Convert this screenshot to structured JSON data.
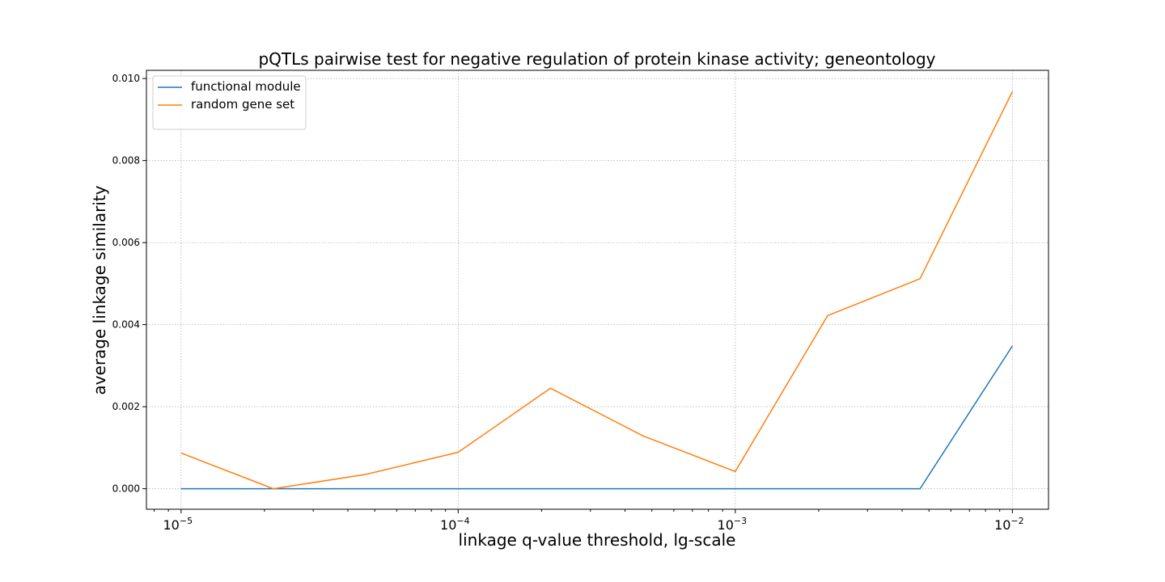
{
  "chart_data": {
    "type": "line",
    "title": "pQTLs pairwise test for negative regulation of protein kinase activity; geneontology",
    "xlabel": "linkage q-value threshold, lg-scale",
    "ylabel": "average linkage similarity",
    "x_scale": "log",
    "x": [
      1e-05,
      2.154e-05,
      4.642e-05,
      0.0001,
      0.0002154,
      0.0004642,
      0.001,
      0.002154,
      0.004642,
      0.01
    ],
    "xlim": [
      7.5e-06,
      0.0135
    ],
    "ylim": [
      -0.0005,
      0.0102
    ],
    "xticks": [
      {
        "value": 1e-05,
        "base": "10",
        "exp": "−5"
      },
      {
        "value": 0.0001,
        "base": "10",
        "exp": "−4"
      },
      {
        "value": 0.001,
        "base": "10",
        "exp": "−3"
      },
      {
        "value": 0.01,
        "base": "10",
        "exp": "−2"
      }
    ],
    "yticks": [
      {
        "value": 0.0,
        "label": "0.000"
      },
      {
        "value": 0.002,
        "label": "0.002"
      },
      {
        "value": 0.004,
        "label": "0.004"
      },
      {
        "value": 0.006,
        "label": "0.006"
      },
      {
        "value": 0.008,
        "label": "0.008"
      },
      {
        "value": 0.01,
        "label": "0.010"
      }
    ],
    "grid": true,
    "legend_position": "top-left",
    "series": [
      {
        "name": "functional module",
        "color": "#1f77b4",
        "values": [
          0.0,
          0.0,
          0.0,
          0.0,
          0.0,
          0.0,
          0.0,
          0.0,
          0.0,
          0.00348
        ]
      },
      {
        "name": "random gene set",
        "color": "#ff7f0e",
        "values": [
          0.00087,
          0.0,
          0.00035,
          0.00089,
          0.00245,
          0.00129,
          0.00042,
          0.00422,
          0.00512,
          0.00968
        ]
      }
    ]
  }
}
